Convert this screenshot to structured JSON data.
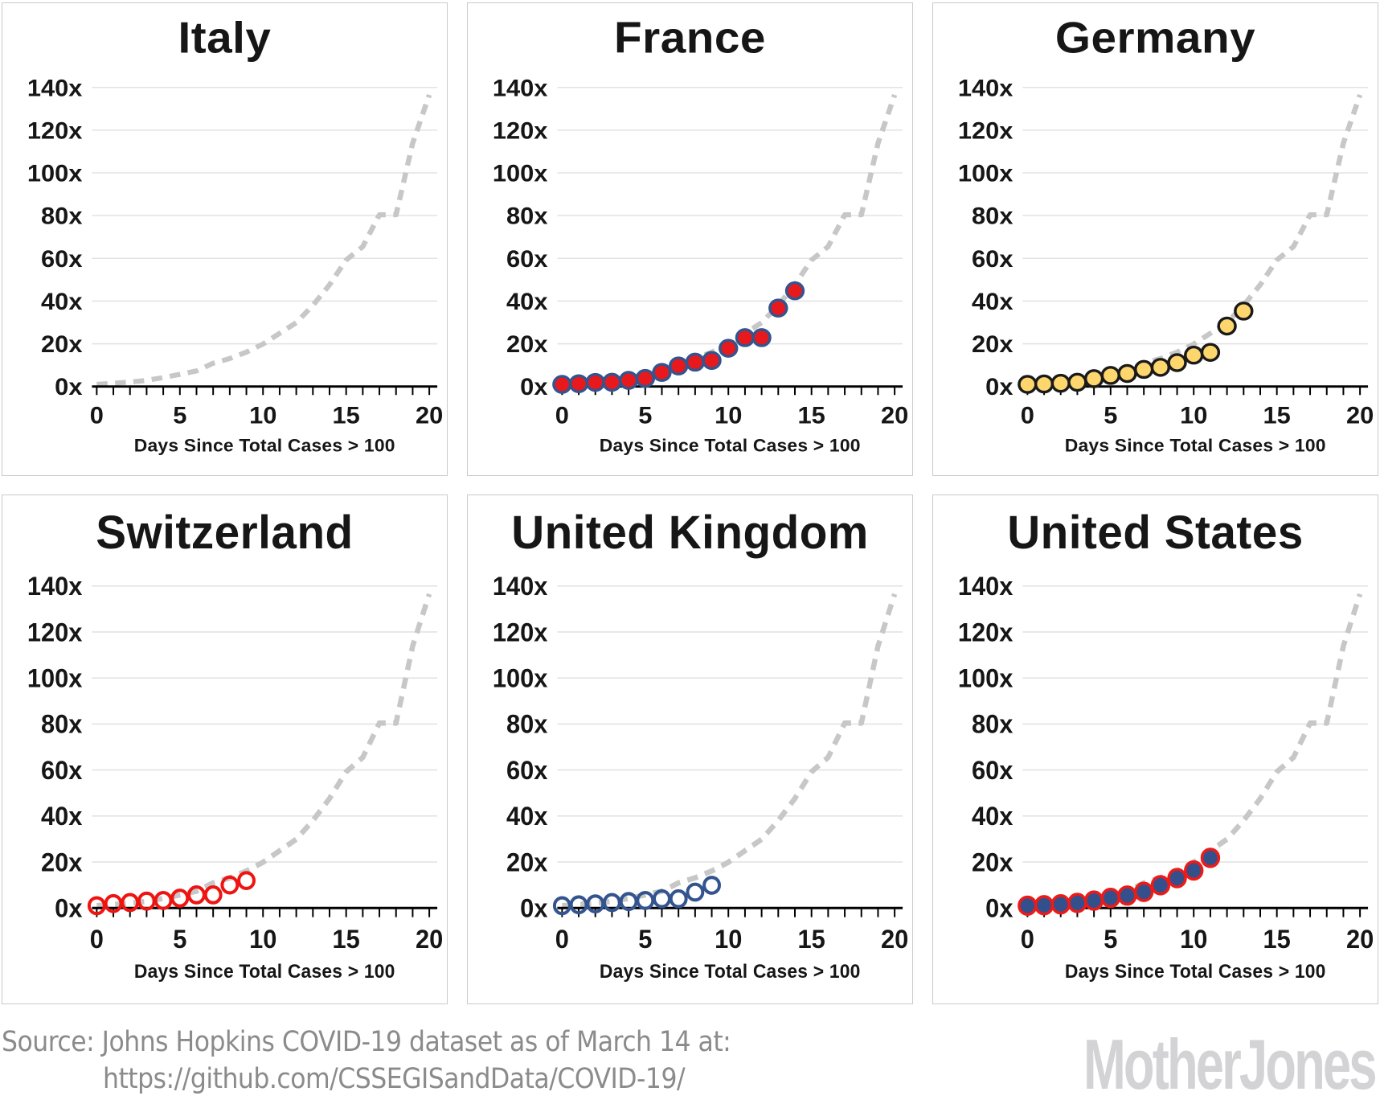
{
  "colors": {
    "gridline": "#e3e3e3",
    "axis": "#000000",
    "reference_line": "#c7c7c7",
    "text": "#161616",
    "source_text": "#8b8b8b",
    "logo": "#d3d3d5",
    "panel_border": "#c9cacb",
    "background": "#ffffff"
  },
  "reference_curve": {
    "name": "Italy trajectory (dashed)",
    "style": "dashed",
    "color": "#c7c7c7",
    "x": [
      0,
      1,
      2,
      3,
      4,
      5,
      6,
      7,
      8,
      9,
      10,
      11,
      12,
      13,
      14,
      15,
      16,
      17,
      18,
      19,
      20
    ],
    "y": [
      1,
      1.5,
      2.1,
      2.9,
      4.2,
      5.7,
      7.3,
      10.9,
      13.1,
      16.1,
      19.9,
      24.9,
      29.9,
      38,
      47.6,
      59.2,
      65.5,
      80.4,
      80.4,
      113.9,
      136.5
    ]
  },
  "chart_data": [
    {
      "type": "scatter",
      "title": "Italy",
      "xlabel": "Days Since Total Cases > 100",
      "ylabel": "",
      "xlim": [
        0,
        20
      ],
      "ylim": [
        0,
        145
      ],
      "xticks": [
        0,
        5,
        10,
        15,
        20
      ],
      "yticks": [
        0,
        20,
        40,
        60,
        80,
        100,
        120,
        140
      ],
      "ytick_suffix": "x",
      "grid": "horizontal",
      "shows_reference_curve_only": true,
      "x": [],
      "y": [],
      "marker": {
        "fill": "none",
        "stroke": "none"
      }
    },
    {
      "type": "scatter",
      "title": "France",
      "xlabel": "Days Since Total Cases > 100",
      "ylabel": "",
      "xlim": [
        0,
        20
      ],
      "ylim": [
        0,
        145
      ],
      "xticks": [
        0,
        5,
        10,
        15,
        20
      ],
      "yticks": [
        0,
        20,
        40,
        60,
        80,
        100,
        120,
        140
      ],
      "ytick_suffix": "x",
      "grid": "horizontal",
      "x": [
        0,
        1,
        2,
        3,
        4,
        5,
        6,
        7,
        8,
        9,
        10,
        11,
        12,
        13,
        14
      ],
      "y": [
        1,
        1.3,
        1.9,
        2,
        2.9,
        3.8,
        6.6,
        9.6,
        11.4,
        12.2,
        17.9,
        22.9,
        22.9,
        36.7,
        44.8
      ],
      "marker": {
        "fill": "#e8191c",
        "stroke": "#33548f"
      }
    },
    {
      "type": "scatter",
      "title": "Germany",
      "xlabel": "Days Since Total Cases > 100",
      "ylabel": "",
      "xlim": [
        0,
        20
      ],
      "ylim": [
        0,
        145
      ],
      "xticks": [
        0,
        5,
        10,
        15,
        20
      ],
      "yticks": [
        0,
        20,
        40,
        60,
        80,
        100,
        120,
        140
      ],
      "ytick_suffix": "x",
      "grid": "horizontal",
      "x": [
        0,
        1,
        2,
        3,
        4,
        5,
        6,
        7,
        8,
        9,
        10,
        11,
        12,
        13
      ],
      "y": [
        1,
        1.2,
        1.5,
        2,
        3.7,
        5.2,
        6.1,
        8,
        9,
        11.2,
        14.7,
        16,
        28.3,
        35.3
      ],
      "marker": {
        "fill": "#fdd66e",
        "stroke": "#1a1a1a"
      }
    },
    {
      "type": "scatter",
      "title": "Switzerland",
      "xlabel": "Days Since Total Cases > 100",
      "ylabel": "",
      "xlim": [
        0,
        20
      ],
      "ylim": [
        0,
        145
      ],
      "xticks": [
        0,
        5,
        10,
        15,
        20
      ],
      "yticks": [
        0,
        20,
        40,
        60,
        80,
        100,
        120,
        140
      ],
      "ytick_suffix": "x",
      "grid": "horizontal",
      "x": [
        0,
        1,
        2,
        3,
        4,
        5,
        6,
        7,
        8,
        9
      ],
      "y": [
        1,
        1.9,
        2.4,
        3,
        3.3,
        4.3,
        5.7,
        5.7,
        10,
        11.9
      ],
      "marker": {
        "fill": "none",
        "stroke": "#ee1411"
      }
    },
    {
      "type": "scatter",
      "title": "United Kingdom",
      "xlabel": "Days Since Total Cases > 100",
      "ylabel": "",
      "xlim": [
        0,
        20
      ],
      "ylim": [
        0,
        145
      ],
      "xticks": [
        0,
        5,
        10,
        15,
        20
      ],
      "yticks": [
        0,
        20,
        40,
        60,
        80,
        100,
        120,
        140
      ],
      "ytick_suffix": "x",
      "grid": "horizontal",
      "x": [
        0,
        1,
        2,
        3,
        4,
        5,
        6,
        7,
        8,
        9
      ],
      "y": [
        1,
        1.4,
        1.8,
        2.4,
        2.8,
        3.3,
        4,
        4,
        6.9,
        9.9
      ],
      "marker": {
        "fill": "none",
        "stroke": "#33548f"
      }
    },
    {
      "type": "scatter",
      "title": "United States",
      "xlabel": "Days Since Total Cases > 100",
      "ylabel": "",
      "xlim": [
        0,
        20
      ],
      "ylim": [
        0,
        145
      ],
      "xticks": [
        0,
        5,
        10,
        15,
        20
      ],
      "yticks": [
        0,
        20,
        40,
        60,
        80,
        100,
        120,
        140
      ],
      "ytick_suffix": "x",
      "grid": "horizontal",
      "x": [
        0,
        1,
        2,
        3,
        4,
        5,
        6,
        7,
        8,
        9,
        10,
        11
      ],
      "y": [
        1,
        1.2,
        1.6,
        2.2,
        3.2,
        4.4,
        5.4,
        7,
        9.9,
        13,
        16.3,
        21.8
      ],
      "marker": {
        "fill": "#33508c",
        "stroke": "#ec1b18"
      }
    }
  ],
  "footer": {
    "source_line1": "Source: Johns Hopkins COVID-19 dataset as of March 14 at:",
    "source_line2": "https://github.com/CSSEGISandData/COVID-19/",
    "logo": "MotherJones"
  }
}
